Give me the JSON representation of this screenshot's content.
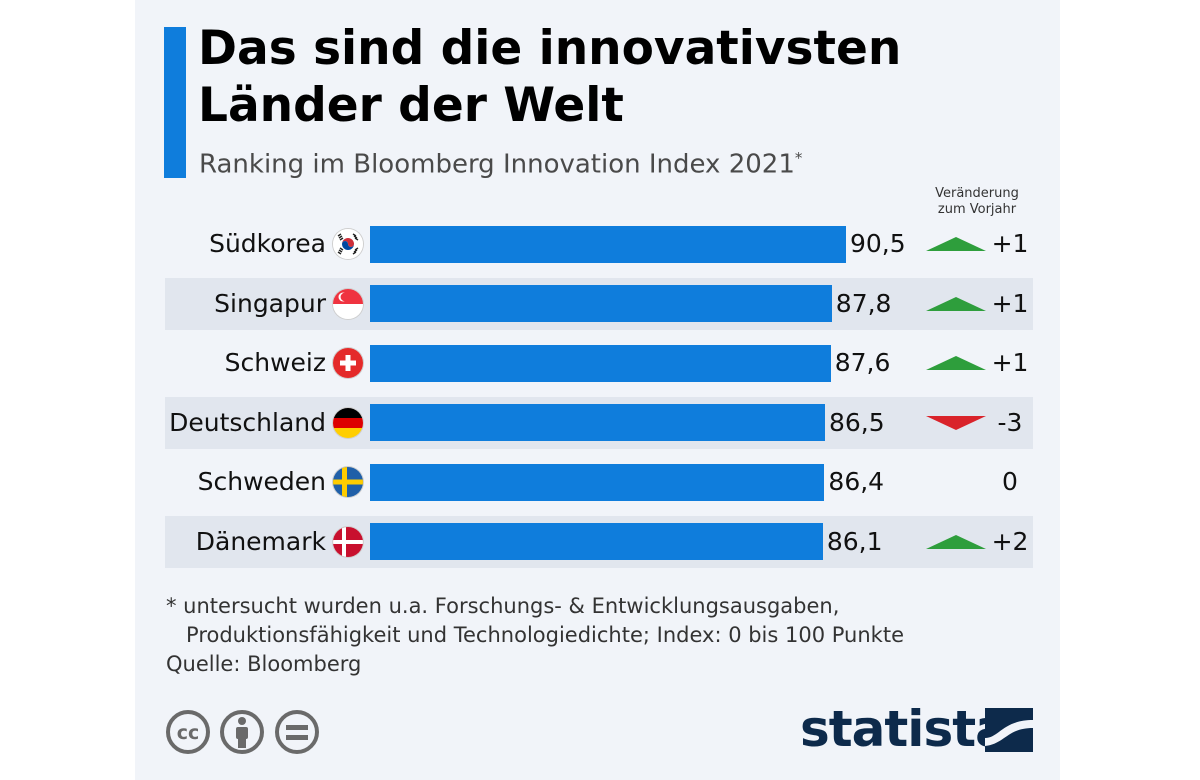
{
  "title": "Das sind die innovativsten Länder der Welt",
  "subtitle": "Ranking im Bloomberg Innovation Index 2021",
  "subtitle_mark": "*",
  "change_header": "Veränderung zum Vorjahr",
  "footnote": "* untersucht wurden u.a. Forschungs- & Entwicklungsausgaben,\n   Produktionsfähigkeit und Technologiedichte; Index: 0 bis 100 Punkte",
  "source": "Quelle: Bloomberg",
  "logo": "statista",
  "colors": {
    "bar": "#0f7ddc",
    "up": "#2e9e3c",
    "down": "#d9232a",
    "accent": "#0f7ddc"
  },
  "chart_data": {
    "type": "bar",
    "orientation": "horizontal",
    "categories": [
      "Südkorea",
      "Singapur",
      "Schweiz",
      "Deutschland",
      "Schweden",
      "Dänemark"
    ],
    "values": [
      90.5,
      87.8,
      87.6,
      86.5,
      86.4,
      86.1
    ],
    "value_labels": [
      "90,5",
      "87,8",
      "87,6",
      "86,5",
      "86,4",
      "86,1"
    ],
    "changes": [
      "+1",
      "+1",
      "+1",
      "-3",
      "0",
      "+2"
    ],
    "change_direction": [
      "up",
      "up",
      "up",
      "down",
      "none",
      "up"
    ],
    "flags": [
      "south-korea-flag",
      "singapore-flag",
      "switzerland-flag",
      "germany-flag",
      "sweden-flag",
      "denmark-flag"
    ],
    "xlim": [
      0,
      100
    ],
    "grid": false,
    "legend": "none"
  }
}
